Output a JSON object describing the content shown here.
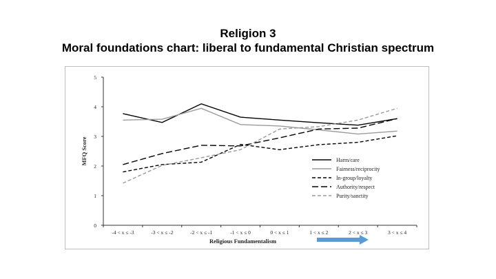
{
  "slide": {
    "title_line1": "Religion 3",
    "title_line2": "Moral foundations chart: liberal to fundamental Christian spectrum"
  },
  "chart_data": {
    "type": "line",
    "xlabel": "Religious Fundamentalism",
    "ylabel": "MFQ Score",
    "categories": [
      "-4 < x ≤ -3",
      "-3 < x ≤ -2",
      "-2 < x ≤ -1",
      "-1 < x ≤ 0",
      "0 < x ≤ 1",
      "1 < x ≤ 2",
      "2 < x ≤ 3",
      "3 < x ≤ 4"
    ],
    "ylim": [
      0,
      5
    ],
    "yticks": [
      "0",
      "1",
      "2",
      "3",
      "4",
      "5"
    ],
    "grid": false,
    "legend_position": "right",
    "series": [
      {
        "name": "Harm/care",
        "values": [
          3.77,
          3.47,
          4.1,
          3.65,
          3.55,
          3.46,
          3.38,
          3.6
        ],
        "color": "#000000",
        "dash": "solid"
      },
      {
        "name": "Fairness/reciprocity",
        "values": [
          3.55,
          3.58,
          3.95,
          3.4,
          3.35,
          3.22,
          3.08,
          3.18
        ],
        "color": "#9a9a9a",
        "dash": "solid"
      },
      {
        "name": "In-group/loyalty",
        "values": [
          1.8,
          2.05,
          2.13,
          2.73,
          2.55,
          2.72,
          2.8,
          3.02
        ],
        "color": "#000000",
        "dash": "dashed"
      },
      {
        "name": "Authority/respect",
        "values": [
          2.05,
          2.42,
          2.7,
          2.68,
          2.95,
          3.25,
          3.28,
          3.6
        ],
        "color": "#000000",
        "dash": "long-dashed"
      },
      {
        "name": "Purity/sanctity",
        "values": [
          1.42,
          2.02,
          2.28,
          2.55,
          3.25,
          3.33,
          3.55,
          3.95
        ],
        "color": "#9a9a9a",
        "dash": "dashed"
      }
    ],
    "annotation": {
      "shape": "arrow",
      "direction": "right",
      "color": "#5b9bd5"
    }
  }
}
